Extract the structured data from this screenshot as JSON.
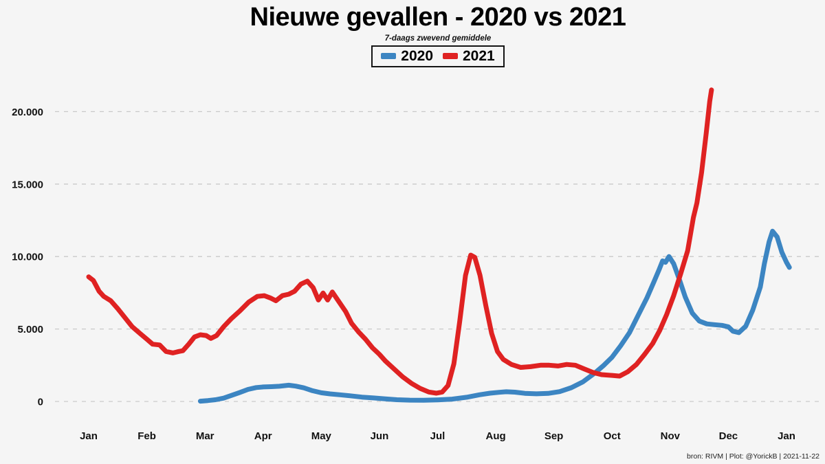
{
  "title": "Nieuwe gevallen - 2020 vs 2021",
  "subtitle": "7-daags zwevend gemiddele",
  "legend": {
    "items": [
      {
        "label": "2020",
        "color": "#3c85c2"
      },
      {
        "label": "2021",
        "color": "#df2222"
      }
    ]
  },
  "footer": {
    "credit": "bron: RIVM  | Plot: @YorickB |  2021-11-22"
  },
  "colors": {
    "background": "#f5f5f5",
    "grid": "#c9c9c9",
    "axis_text": "#111111",
    "blue_2020": "#3c85c2",
    "red_2021": "#df2222"
  },
  "chart_data": {
    "type": "line",
    "title": "Nieuwe gevallen - 2020 vs 2021",
    "subtitle": "7-daags zwevend gemiddele",
    "xlabel": "",
    "ylabel": "",
    "x_unit": "months_since_jan_start",
    "legend_position": "top-center",
    "grid": "dashed-horizontal",
    "x_axis": {
      "tick_labels": [
        "Jan",
        "Feb",
        "Mar",
        "Apr",
        "May",
        "Jun",
        "Jul",
        "Aug",
        "Sep",
        "Oct",
        "Nov",
        "Dec",
        "Jan"
      ],
      "tick_positions_months": [
        0,
        1,
        2,
        3,
        4,
        5,
        6,
        7,
        8,
        9,
        10,
        11,
        12
      ]
    },
    "y_axis": {
      "tick_values": [
        0,
        5000,
        10000,
        15000,
        20000
      ],
      "tick_labels": [
        "0",
        "5.000",
        "10.000",
        "15.000",
        "20.000"
      ],
      "range": [
        0,
        22000
      ]
    },
    "series": [
      {
        "name": "2020",
        "color": "#3c85c2",
        "points": [
          [
            1.92,
            20
          ],
          [
            2.05,
            60
          ],
          [
            2.18,
            120
          ],
          [
            2.32,
            230
          ],
          [
            2.46,
            420
          ],
          [
            2.6,
            620
          ],
          [
            2.74,
            830
          ],
          [
            2.88,
            960
          ],
          [
            3.0,
            1000
          ],
          [
            3.14,
            1020
          ],
          [
            3.28,
            1050
          ],
          [
            3.44,
            1120
          ],
          [
            3.56,
            1060
          ],
          [
            3.7,
            940
          ],
          [
            3.85,
            740
          ],
          [
            4.0,
            600
          ],
          [
            4.15,
            520
          ],
          [
            4.32,
            460
          ],
          [
            4.5,
            390
          ],
          [
            4.7,
            300
          ],
          [
            4.9,
            240
          ],
          [
            5.1,
            180
          ],
          [
            5.3,
            120
          ],
          [
            5.52,
            90
          ],
          [
            5.76,
            80
          ],
          [
            6.0,
            110
          ],
          [
            6.25,
            160
          ],
          [
            6.5,
            290
          ],
          [
            6.72,
            460
          ],
          [
            6.9,
            570
          ],
          [
            7.06,
            630
          ],
          [
            7.18,
            670
          ],
          [
            7.33,
            640
          ],
          [
            7.5,
            560
          ],
          [
            7.7,
            525
          ],
          [
            7.9,
            555
          ],
          [
            8.1,
            680
          ],
          [
            8.3,
            950
          ],
          [
            8.5,
            1350
          ],
          [
            8.7,
            1950
          ],
          [
            8.86,
            2500
          ],
          [
            9.0,
            3050
          ],
          [
            9.15,
            3850
          ],
          [
            9.3,
            4750
          ],
          [
            9.45,
            5950
          ],
          [
            9.6,
            7150
          ],
          [
            9.72,
            8250
          ],
          [
            9.81,
            9100
          ],
          [
            9.87,
            9700
          ],
          [
            9.92,
            9600
          ],
          [
            9.98,
            10000
          ],
          [
            10.06,
            9500
          ],
          [
            10.16,
            8400
          ],
          [
            10.26,
            7200
          ],
          [
            10.38,
            6100
          ],
          [
            10.5,
            5550
          ],
          [
            10.63,
            5350
          ],
          [
            10.76,
            5300
          ],
          [
            10.89,
            5250
          ],
          [
            11.0,
            5150
          ],
          [
            11.08,
            4850
          ],
          [
            11.18,
            4750
          ],
          [
            11.3,
            5200
          ],
          [
            11.42,
            6300
          ],
          [
            11.55,
            7900
          ],
          [
            11.62,
            9500
          ],
          [
            11.7,
            11000
          ],
          [
            11.76,
            11750
          ],
          [
            11.84,
            11350
          ],
          [
            11.92,
            10300
          ],
          [
            12.0,
            9600
          ],
          [
            12.05,
            9250
          ]
        ]
      },
      {
        "name": "2021",
        "color": "#df2222",
        "points": [
          [
            0.0,
            8600
          ],
          [
            0.08,
            8350
          ],
          [
            0.18,
            7600
          ],
          [
            0.26,
            7250
          ],
          [
            0.38,
            6950
          ],
          [
            0.5,
            6400
          ],
          [
            0.62,
            5800
          ],
          [
            0.75,
            5150
          ],
          [
            0.88,
            4700
          ],
          [
            1.0,
            4300
          ],
          [
            1.1,
            3950
          ],
          [
            1.22,
            3900
          ],
          [
            1.33,
            3450
          ],
          [
            1.45,
            3350
          ],
          [
            1.55,
            3450
          ],
          [
            1.62,
            3500
          ],
          [
            1.72,
            3950
          ],
          [
            1.82,
            4450
          ],
          [
            1.92,
            4600
          ],
          [
            2.02,
            4550
          ],
          [
            2.1,
            4350
          ],
          [
            2.2,
            4550
          ],
          [
            2.32,
            5150
          ],
          [
            2.45,
            5700
          ],
          [
            2.6,
            6250
          ],
          [
            2.75,
            6850
          ],
          [
            2.9,
            7250
          ],
          [
            3.02,
            7300
          ],
          [
            3.12,
            7150
          ],
          [
            3.22,
            6950
          ],
          [
            3.33,
            7300
          ],
          [
            3.44,
            7400
          ],
          [
            3.54,
            7600
          ],
          [
            3.65,
            8100
          ],
          [
            3.76,
            8300
          ],
          [
            3.86,
            7850
          ],
          [
            3.95,
            7000
          ],
          [
            4.03,
            7480
          ],
          [
            4.11,
            7000
          ],
          [
            4.19,
            7550
          ],
          [
            4.3,
            6900
          ],
          [
            4.42,
            6200
          ],
          [
            4.52,
            5400
          ],
          [
            4.64,
            4800
          ],
          [
            4.76,
            4300
          ],
          [
            4.88,
            3700
          ],
          [
            5.0,
            3250
          ],
          [
            5.1,
            2800
          ],
          [
            5.25,
            2250
          ],
          [
            5.4,
            1700
          ],
          [
            5.55,
            1250
          ],
          [
            5.7,
            900
          ],
          [
            5.85,
            650
          ],
          [
            5.98,
            570
          ],
          [
            6.08,
            650
          ],
          [
            6.18,
            1100
          ],
          [
            6.28,
            2600
          ],
          [
            6.38,
            5500
          ],
          [
            6.48,
            8700
          ],
          [
            6.57,
            10100
          ],
          [
            6.64,
            9950
          ],
          [
            6.73,
            8700
          ],
          [
            6.83,
            6600
          ],
          [
            6.93,
            4700
          ],
          [
            7.03,
            3450
          ],
          [
            7.13,
            2900
          ],
          [
            7.27,
            2550
          ],
          [
            7.43,
            2350
          ],
          [
            7.6,
            2400
          ],
          [
            7.77,
            2500
          ],
          [
            7.92,
            2500
          ],
          [
            8.07,
            2450
          ],
          [
            8.22,
            2550
          ],
          [
            8.37,
            2500
          ],
          [
            8.52,
            2250
          ],
          [
            8.67,
            2000
          ],
          [
            8.82,
            1850
          ],
          [
            9.0,
            1800
          ],
          [
            9.13,
            1750
          ],
          [
            9.27,
            2050
          ],
          [
            9.42,
            2550
          ],
          [
            9.56,
            3250
          ],
          [
            9.7,
            4000
          ],
          [
            9.82,
            4900
          ],
          [
            9.94,
            6000
          ],
          [
            10.06,
            7300
          ],
          [
            10.18,
            8800
          ],
          [
            10.3,
            10400
          ],
          [
            10.4,
            12700
          ],
          [
            10.46,
            13700
          ],
          [
            10.54,
            15800
          ],
          [
            10.62,
            18500
          ],
          [
            10.68,
            20700
          ],
          [
            10.71,
            21500
          ]
        ]
      }
    ]
  }
}
